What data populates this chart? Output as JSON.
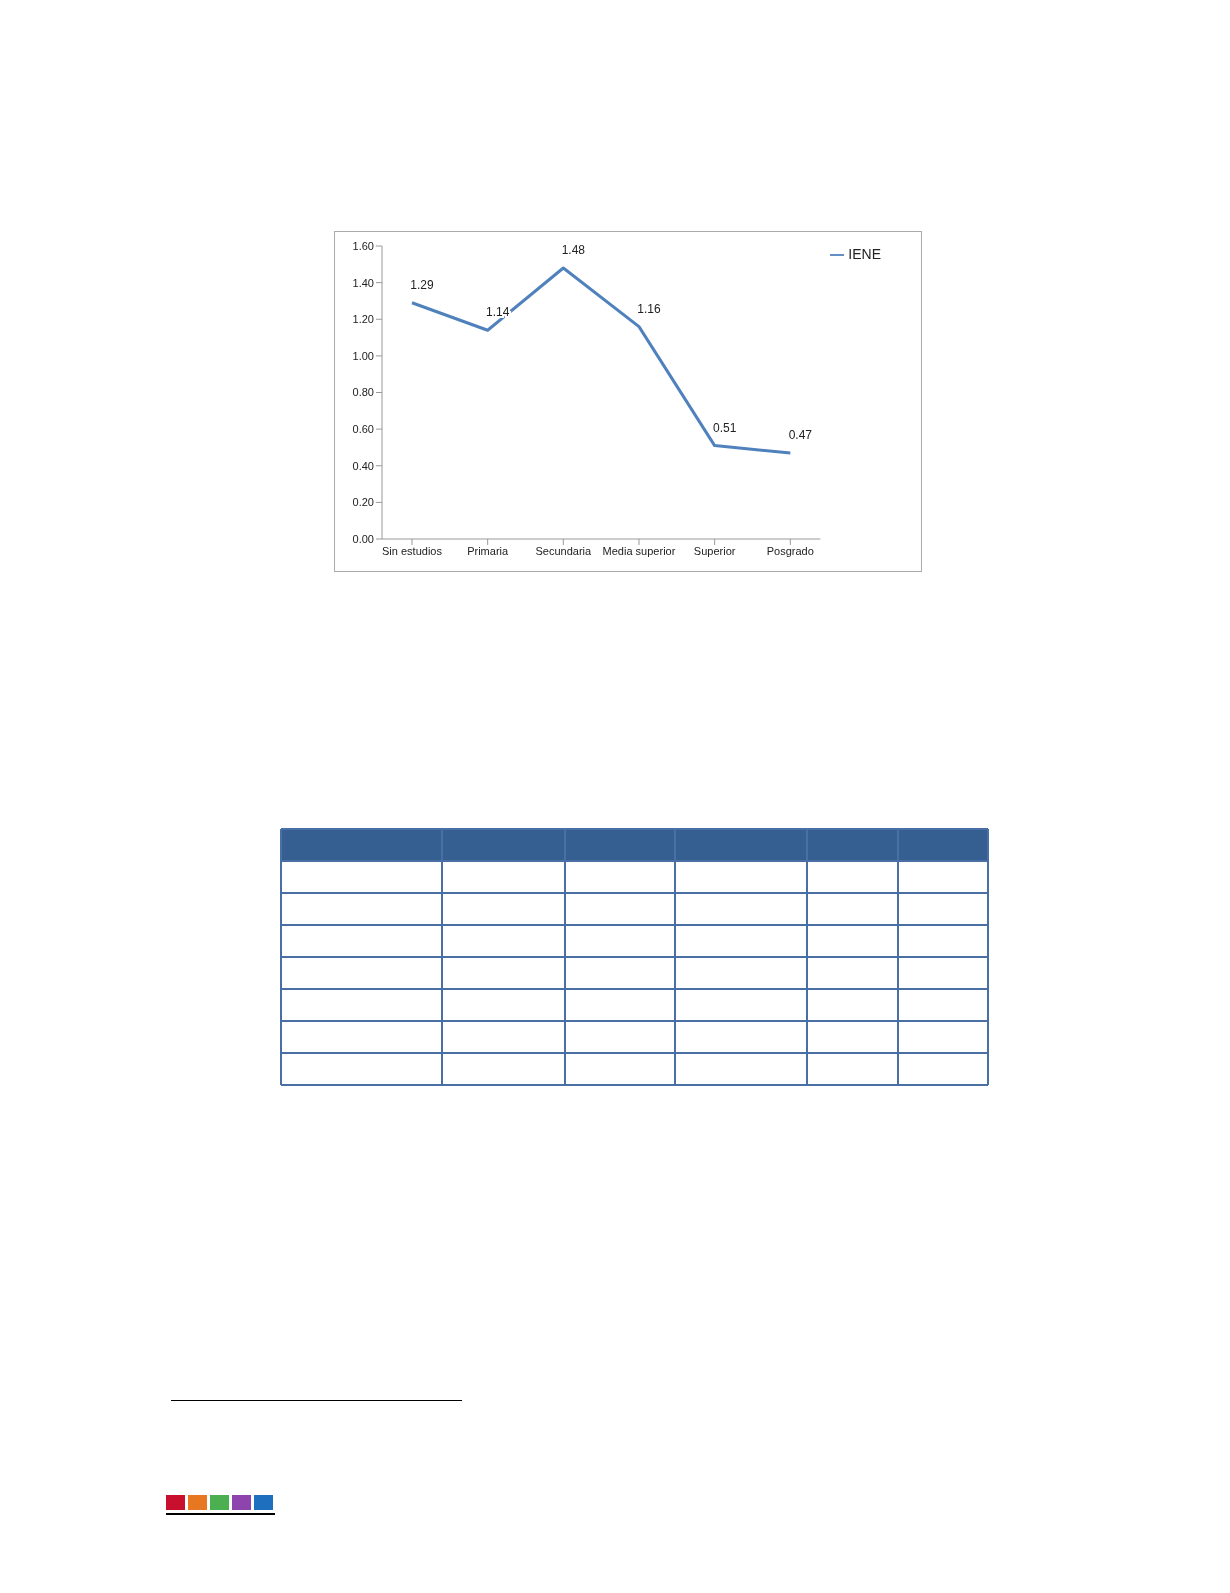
{
  "chart_data": {
    "type": "line",
    "categories": [
      "Sin estudios",
      "Primaria",
      "Secundaria",
      "Media superior",
      "Superior",
      "Posgrado"
    ],
    "series": [
      {
        "name": "IENE",
        "color": "#4f81bd",
        "values": [
          1.29,
          1.14,
          1.48,
          1.16,
          0.51,
          0.47
        ]
      }
    ],
    "ylim": [
      0,
      1.6
    ],
    "yticks": [
      {
        "value": 0,
        "label": "0.00"
      },
      {
        "value": 0.2,
        "label": "0.20"
      },
      {
        "value": 0.4,
        "label": "0.40"
      },
      {
        "value": 0.6,
        "label": "0.60"
      },
      {
        "value": 0.8,
        "label": "0.80"
      },
      {
        "value": 1,
        "label": "1.00"
      },
      {
        "value": 1.2,
        "label": "1.20"
      },
      {
        "value": 1.4,
        "label": "1.40"
      },
      {
        "value": 1.6,
        "label": "1.60"
      }
    ],
    "data_labels": true,
    "grid": false,
    "legend": "top right",
    "marker": "none",
    "line_style": "solid"
  }
}
